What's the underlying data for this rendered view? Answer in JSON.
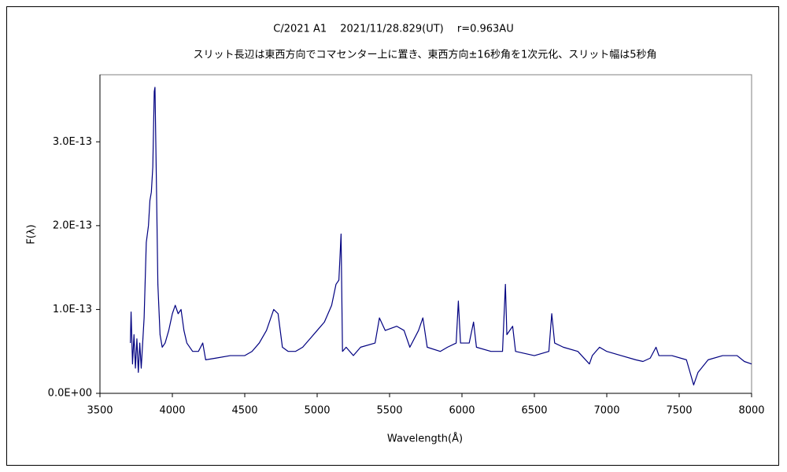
{
  "chart_data": {
    "type": "line",
    "title": "C/2021 A1　 2021/11/28.829(UT)　 r=0.963AU",
    "subtitle": "スリット長辺は東西方向でコマセンター上に置き、東西方向±16秒角を1次元化、スリット幅は5秒角",
    "xlabel": "Wavelength(Å)",
    "ylabel": "F(λ)",
    "xlim": [
      3500,
      8000
    ],
    "xticks": [
      3500,
      4000,
      4500,
      5000,
      5500,
      6000,
      6500,
      7000,
      7500,
      8000
    ],
    "ylim": [
      0,
      3.8e-13
    ],
    "yticks": [
      {
        "value": 0,
        "label": "0.0E+00"
      },
      {
        "value": 1e-13,
        "label": "1.0E-13"
      },
      {
        "value": 2e-13,
        "label": "2.0E-13"
      },
      {
        "value": 3e-13,
        "label": "3.0E-13"
      }
    ],
    "grid": false,
    "series": [
      {
        "color": "#000080",
        "x": [
          3710,
          3715,
          3725,
          3735,
          3745,
          3755,
          3765,
          3775,
          3785,
          3795,
          3805,
          3820,
          3835,
          3845,
          3855,
          3865,
          3875,
          3880,
          3890,
          3900,
          3915,
          3930,
          3950,
          3975,
          4000,
          4020,
          4040,
          4060,
          4080,
          4100,
          4140,
          4180,
          4210,
          4230,
          4300,
          4400,
          4500,
          4550,
          4600,
          4650,
          4700,
          4730,
          4760,
          4800,
          4850,
          4900,
          4950,
          5000,
          5050,
          5100,
          5130,
          5150,
          5165,
          5175,
          5200,
          5250,
          5300,
          5400,
          5430,
          5470,
          5550,
          5600,
          5640,
          5700,
          5730,
          5760,
          5850,
          5900,
          5960,
          5975,
          5990,
          6050,
          6080,
          6100,
          6200,
          6280,
          6300,
          6310,
          6350,
          6370,
          6500,
          6600,
          6620,
          6640,
          6700,
          6800,
          6880,
          6900,
          6950,
          7000,
          7100,
          7200,
          7250,
          7300,
          7340,
          7360,
          7450,
          7550,
          7600,
          7630,
          7700,
          7800,
          7900,
          7950,
          8000
        ],
        "values": [
          6e-14,
          9.7e-14,
          3.5e-14,
          7e-14,
          3e-14,
          6.5e-14,
          2.5e-14,
          6e-14,
          3e-14,
          6e-14,
          9e-14,
          1.8e-13,
          2e-13,
          2.3e-13,
          2.4e-13,
          2.7e-13,
          3.6e-13,
          3.65e-13,
          2.5e-13,
          1.3e-13,
          7e-14,
          5.5e-14,
          6e-14,
          7.5e-14,
          9.5e-14,
          1.05e-13,
          9.5e-14,
          1e-13,
          7.5e-14,
          6e-14,
          5e-14,
          5e-14,
          6e-14,
          4e-14,
          4.2e-14,
          4.5e-14,
          4.5e-14,
          5e-14,
          6e-14,
          7.5e-14,
          1e-13,
          9.5e-14,
          5.5e-14,
          5e-14,
          5e-14,
          5.5e-14,
          6.5e-14,
          7.5e-14,
          8.5e-14,
          1.05e-13,
          1.3e-13,
          1.35e-13,
          1.9e-13,
          5e-14,
          5.5e-14,
          4.5e-14,
          5.5e-14,
          6e-14,
          9e-14,
          7.5e-14,
          8e-14,
          7.5e-14,
          5.5e-14,
          7.5e-14,
          9e-14,
          5.5e-14,
          5e-14,
          5.5e-14,
          6e-14,
          1.1e-13,
          6e-14,
          6e-14,
          8.5e-14,
          5.5e-14,
          5e-14,
          5e-14,
          1.3e-13,
          7e-14,
          8e-14,
          5e-14,
          4.5e-14,
          5e-14,
          9.5e-14,
          6e-14,
          5.5e-14,
          5e-14,
          3.5e-14,
          4.5e-14,
          5.5e-14,
          5e-14,
          4.5e-14,
          4e-14,
          3.8e-14,
          4.2e-14,
          5.5e-14,
          4.5e-14,
          4.5e-14,
          4e-14,
          1e-14,
          2.5e-14,
          4e-14,
          4.5e-14,
          4.5e-14,
          3.8e-14,
          3.5e-14
        ]
      }
    ]
  }
}
